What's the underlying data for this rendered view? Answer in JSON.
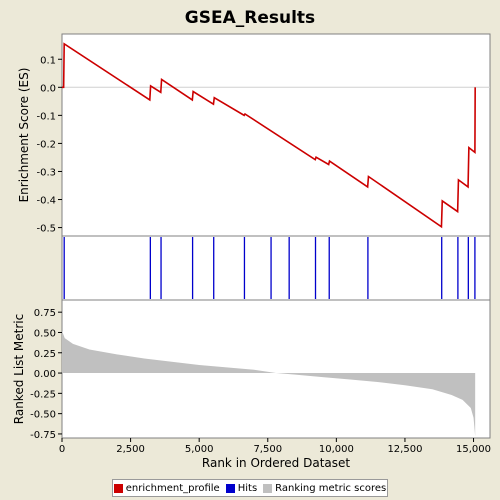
{
  "chart_data": {
    "type": "line",
    "title": "GSEA_Results",
    "xlabel": "Rank in Ordered Dataset",
    "x_ticks": [
      "0",
      "2,500",
      "5,000",
      "7,500",
      "10,000",
      "12,500",
      "15,000"
    ],
    "x_tick_values": [
      0,
      2500,
      5000,
      7500,
      10000,
      12500,
      15000
    ],
    "xlim": [
      0,
      15600
    ],
    "es_panel": {
      "ylabel": "Enrichment Score (ES)",
      "ylim": [
        -0.53,
        0.19
      ],
      "y_ticks": [
        "0.1",
        "0.0",
        "-0.1",
        "-0.2",
        "-0.3",
        "-0.4",
        "-0.5"
      ],
      "y_tick_values": [
        0.1,
        0.0,
        -0.1,
        -0.2,
        -0.3,
        -0.4,
        -0.5
      ],
      "series_name": "enrichment_profile",
      "color": "#cc0000",
      "points": [
        [
          0,
          0.0
        ],
        [
          60,
          0.0
        ],
        [
          80,
          0.155
        ],
        [
          3200,
          -0.045
        ],
        [
          3230,
          0.005
        ],
        [
          3600,
          -0.018
        ],
        [
          3630,
          0.028
        ],
        [
          4750,
          -0.045
        ],
        [
          4780,
          -0.015
        ],
        [
          5520,
          -0.06
        ],
        [
          5550,
          -0.037
        ],
        [
          6640,
          -0.1
        ],
        [
          6670,
          -0.095
        ],
        [
          9230,
          -0.258
        ],
        [
          9260,
          -0.249
        ],
        [
          9720,
          -0.275
        ],
        [
          9750,
          -0.263
        ],
        [
          11140,
          -0.355
        ],
        [
          11170,
          -0.318
        ],
        [
          13830,
          -0.497
        ],
        [
          13860,
          -0.405
        ],
        [
          14420,
          -0.443
        ],
        [
          14450,
          -0.33
        ],
        [
          14800,
          -0.355
        ],
        [
          14830,
          -0.215
        ],
        [
          15050,
          -0.232
        ],
        [
          15060,
          0.0
        ]
      ]
    },
    "hits_panel": {
      "series_name": "Hits",
      "color": "#0000cc",
      "positions": [
        80,
        3220,
        3610,
        4760,
        5530,
        6650,
        7620,
        8280,
        9240,
        9740,
        11150,
        13840,
        14430,
        14810,
        15050
      ]
    },
    "metric_panel": {
      "ylabel": "Ranked List Metric",
      "ylim": [
        -0.8,
        0.9
      ],
      "y_ticks": [
        "0.75",
        "0.50",
        "0.25",
        "0.00",
        "-0.25",
        "-0.50",
        "-0.75"
      ],
      "y_tick_values": [
        0.75,
        0.5,
        0.25,
        0.0,
        -0.25,
        -0.5,
        -0.75
      ],
      "series_name": "Ranking metric scores",
      "color": "#c0c0c0",
      "profile": [
        [
          0,
          0.52
        ],
        [
          100,
          0.43
        ],
        [
          400,
          0.36
        ],
        [
          1000,
          0.29
        ],
        [
          2000,
          0.23
        ],
        [
          3000,
          0.18
        ],
        [
          4000,
          0.14
        ],
        [
          5000,
          0.1
        ],
        [
          6000,
          0.07
        ],
        [
          7000,
          0.04
        ],
        [
          7800,
          0.0
        ],
        [
          8500,
          -0.02
        ],
        [
          9500,
          -0.05
        ],
        [
          10500,
          -0.08
        ],
        [
          11500,
          -0.11
        ],
        [
          12500,
          -0.15
        ],
        [
          13500,
          -0.2
        ],
        [
          14200,
          -0.27
        ],
        [
          14600,
          -0.33
        ],
        [
          14900,
          -0.43
        ],
        [
          15000,
          -0.55
        ],
        [
          15060,
          -0.78
        ]
      ]
    },
    "legend": {
      "placement": "bottom",
      "items": [
        {
          "label": "enrichment_profile",
          "color": "#cc0000"
        },
        {
          "label": "Hits",
          "color": "#0000cc"
        },
        {
          "label": "Ranking metric scores",
          "color": "#c0c0c0"
        }
      ]
    },
    "grid": false
  }
}
